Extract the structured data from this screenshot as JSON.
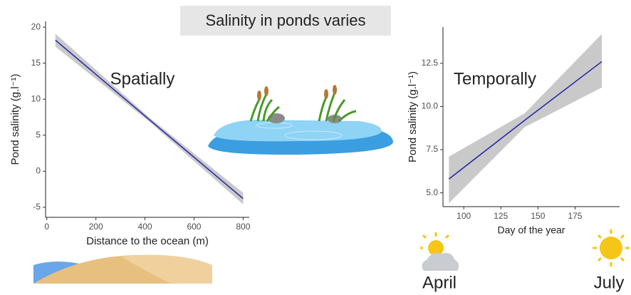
{
  "title": "Salinity in ponds varies",
  "chart_data": [
    {
      "type": "line",
      "annotation": "Spatially",
      "x_label": "Distance to the ocean (m)",
      "y_label": "Pond salinity (g.l⁻¹)",
      "x": [
        35,
        420,
        800
      ],
      "series": [
        {
          "color": "#2323a8",
          "band_color": "#c9c9c9",
          "values": [
            18.2,
            7.1,
            -3.8
          ],
          "lower": [
            17.3,
            6.8,
            -4.6
          ],
          "upper": [
            19.1,
            7.4,
            -3.0
          ]
        }
      ],
      "xlim": [
        -5,
        825
      ],
      "ylim": [
        -6.4,
        20.8
      ],
      "xticks": [
        0,
        200,
        400,
        600,
        800
      ],
      "yticks": [
        -5,
        0,
        5,
        10,
        15,
        20
      ]
    },
    {
      "type": "line",
      "annotation": "Temporally",
      "season_labels": [
        "April",
        "July"
      ],
      "x_label": "Day of the year",
      "y_label": "Pond salinity (g.l⁻¹)",
      "x": [
        90,
        141,
        193
      ],
      "series": [
        {
          "color": "#2323a8",
          "band_color": "#c9c9c9",
          "values": [
            5.8,
            9.2,
            12.6
          ],
          "lower": [
            4.4,
            8.8,
            11.1
          ],
          "upper": [
            7.1,
            9.6,
            14.2
          ]
        }
      ],
      "xlim": [
        86,
        205
      ],
      "ylim": [
        4.2,
        14.6
      ],
      "xticks": [
        100,
        125,
        150,
        175
      ],
      "yticks": [
        {
          "value": 5,
          "label": "5.0"
        },
        {
          "value": 7.5,
          "label": "7.5"
        },
        {
          "value": 10,
          "label": "10.0"
        },
        {
          "value": 12.5,
          "label": "12.5"
        }
      ]
    }
  ]
}
